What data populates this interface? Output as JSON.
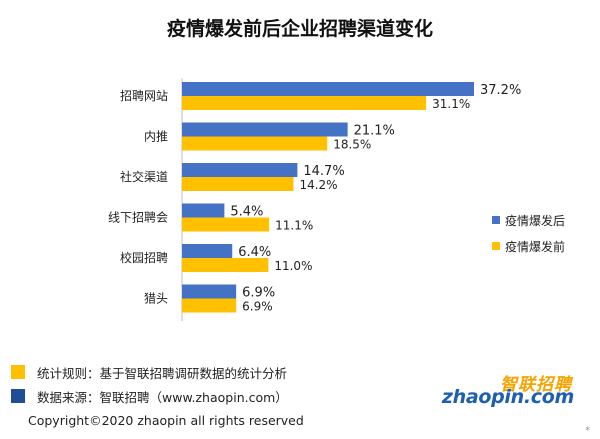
{
  "title": "疫情爆发前后企业招聘渠道变化",
  "chart_data": {
    "type": "bar",
    "orientation": "horizontal",
    "title": "疫情爆发前后企业招聘渠道变化",
    "categories": [
      "招聘网站",
      "内推",
      "社交渠道",
      "线下招聘会",
      "校园招聘",
      "猎头"
    ],
    "series": [
      {
        "name": "疫情爆发后",
        "values": [
          37.2,
          21.1,
          14.7,
          5.4,
          6.4,
          6.9
        ],
        "labels": [
          "37.2%",
          "21.1%",
          "14.7%",
          "5.4%",
          "6.4%",
          "6.9%"
        ],
        "color": "#4472c4"
      },
      {
        "name": "疫情爆发前",
        "values": [
          31.1,
          18.5,
          14.2,
          11.1,
          11.0,
          6.9
        ],
        "labels": [
          "31.1%",
          "18.5%",
          "14.2%",
          "11.1%",
          "11.0%",
          "6.9%"
        ],
        "color": "#ffc000"
      }
    ],
    "xlim": [
      0,
      40
    ],
    "legend_position": "right",
    "grid": false
  },
  "footer": {
    "note1": {
      "text": "统计规则：基于智联招聘调研数据的统计分析",
      "color": "#ffc000"
    },
    "note2": {
      "text": "数据来源：智联招聘（www.zhaopin.com）",
      "color": "#1f4e99"
    },
    "copyright": "Copyright©2020 zhaopin all rights reserved"
  },
  "logo": {
    "cn": "智联招聘",
    "en": "zhaopin.com",
    "icon": "zhaopin-logo"
  },
  "corner_mark": "*"
}
